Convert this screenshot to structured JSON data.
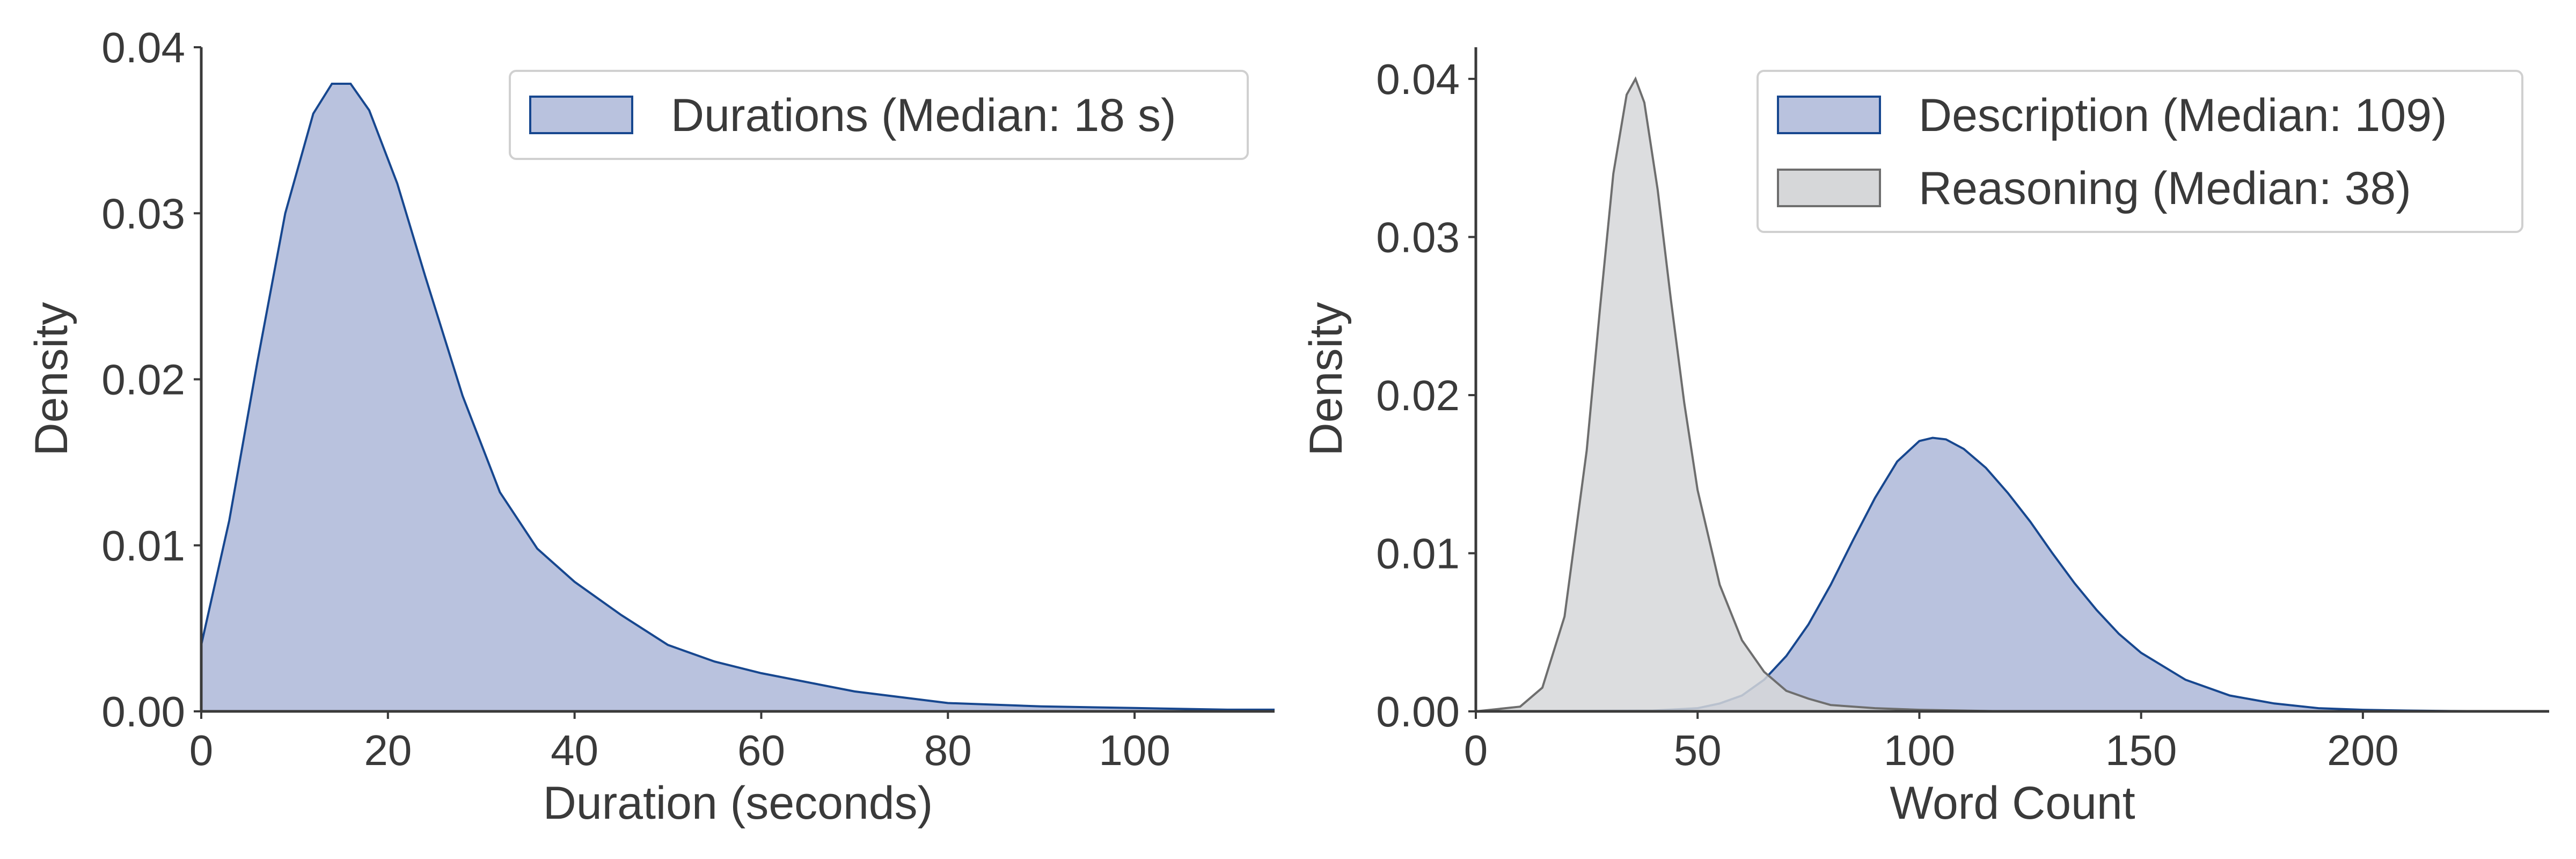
{
  "chart_data": [
    {
      "type": "area",
      "xlabel": "Duration (seconds)",
      "ylabel": "Density",
      "xlim": [
        0,
        115
      ],
      "ylim": [
        0,
        0.04
      ],
      "xticks": [
        "0",
        "20",
        "40",
        "60",
        "80",
        "100"
      ],
      "yticks": [
        "0.00",
        "0.01",
        "0.02",
        "0.03",
        "0.04"
      ],
      "legend_position": "top-right",
      "grid": false,
      "series": [
        {
          "name": "Durations (Median: 18 s)",
          "fill": "#b9c2de",
          "stroke": "#17478f",
          "x": [
            0,
            3,
            6,
            9,
            12,
            14,
            16,
            18,
            21,
            24,
            28,
            32,
            36,
            40,
            45,
            50,
            55,
            60,
            70,
            80,
            90,
            100,
            110,
            115
          ],
          "y": [
            0.004,
            0.0115,
            0.021,
            0.03,
            0.036,
            0.0378,
            0.0378,
            0.0362,
            0.0318,
            0.0262,
            0.019,
            0.0132,
            0.0098,
            0.0078,
            0.0058,
            0.004,
            0.003,
            0.0023,
            0.0012,
            0.0005,
            0.0003,
            0.0002,
            0.0001,
            0.0001
          ]
        }
      ]
    },
    {
      "type": "area",
      "xlabel": "Word Count",
      "ylabel": "Density",
      "xlim": [
        0,
        242
      ],
      "ylim": [
        0,
        0.042
      ],
      "xticks": [
        "0",
        "50",
        "100",
        "150",
        "200"
      ],
      "yticks": [
        "0.00",
        "0.01",
        "0.02",
        "0.03",
        "0.04"
      ],
      "legend_position": "top-right",
      "grid": false,
      "series": [
        {
          "name": "Description (Median: 109)",
          "fill": "#b9c2de",
          "stroke": "#17478f",
          "x": [
            0,
            40,
            50,
            55,
            60,
            65,
            70,
            75,
            80,
            85,
            90,
            95,
            100,
            103,
            106,
            110,
            115,
            120,
            125,
            130,
            135,
            140,
            145,
            150,
            160,
            170,
            180,
            190,
            200,
            210,
            220,
            230,
            242
          ],
          "y": [
            0,
            5e-05,
            0.0002,
            0.0005,
            0.001,
            0.002,
            0.0035,
            0.0055,
            0.008,
            0.0108,
            0.0135,
            0.0158,
            0.0171,
            0.0173,
            0.0172,
            0.0166,
            0.0154,
            0.0138,
            0.012,
            0.01,
            0.0081,
            0.0064,
            0.0049,
            0.0037,
            0.002,
            0.001,
            0.0005,
            0.0002,
            0.0001,
            5e-05,
            2e-05,
            1e-05,
            0
          ]
        },
        {
          "name": "Reasoning (Median: 38)",
          "fill": "#d6d7d9",
          "stroke": "#6e6e6e",
          "x": [
            0,
            10,
            15,
            20,
            25,
            28,
            31,
            34,
            36,
            38,
            41,
            44,
            47,
            50,
            55,
            60,
            65,
            70,
            75,
            80,
            90,
            100,
            120,
            150,
            200,
            242
          ],
          "y": [
            0,
            0.0003,
            0.0015,
            0.006,
            0.0165,
            0.0255,
            0.034,
            0.039,
            0.04,
            0.0385,
            0.033,
            0.026,
            0.0195,
            0.014,
            0.008,
            0.0045,
            0.0025,
            0.0013,
            0.0008,
            0.0004,
            0.0002,
            0.0001,
            0,
            0,
            0,
            0
          ]
        }
      ]
    }
  ]
}
